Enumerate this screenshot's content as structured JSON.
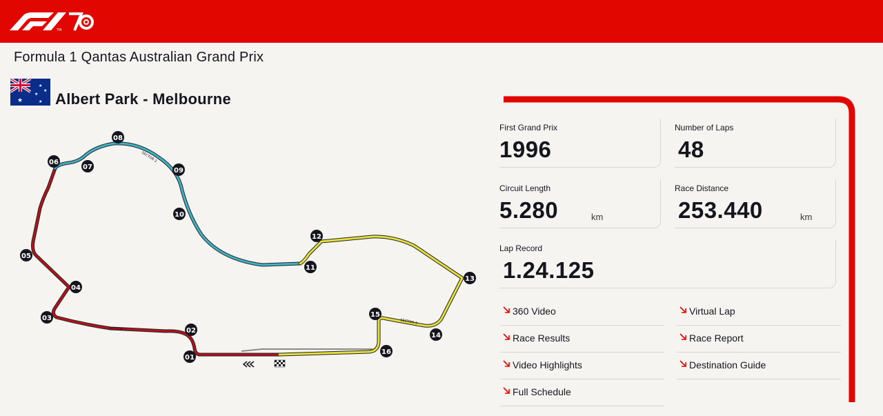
{
  "header": {
    "logo": "f1-70-logo",
    "brand_color": "#e10600"
  },
  "event": {
    "title": "Formula 1 Qantas Australian Grand Prix",
    "flag": "australia-flag",
    "circuit_name": "Albert Park - Melbourne"
  },
  "circuit_map": {
    "corners": [
      "01",
      "02",
      "03",
      "04",
      "05",
      "06",
      "07",
      "08",
      "09",
      "10",
      "11",
      "12",
      "13",
      "14",
      "15",
      "16"
    ],
    "sector_colors": {
      "sector1": "#b3141c",
      "sector2": "#3fb4c9",
      "sector3": "#e6e13a"
    },
    "sector_labels": [
      "SECTOR 1",
      "SECTOR 2",
      "SECTOR 3"
    ]
  },
  "stats": {
    "first_gp": {
      "label": "First Grand Prix",
      "value": "1996"
    },
    "laps": {
      "label": "Number of Laps",
      "value": "48"
    },
    "length": {
      "label": "Circuit Length",
      "value": "5.280",
      "unit": "km"
    },
    "distance": {
      "label": "Race Distance",
      "value": "253.440",
      "unit": "km"
    },
    "lap_record": {
      "label": "Lap Record",
      "value": "1.24.125"
    }
  },
  "links": [
    {
      "label": "360 Video"
    },
    {
      "label": "Virtual Lap"
    },
    {
      "label": "Race Results"
    },
    {
      "label": "Race Report"
    },
    {
      "label": "Video Highlights"
    },
    {
      "label": "Destination Guide"
    },
    {
      "label": "Full Schedule"
    }
  ]
}
